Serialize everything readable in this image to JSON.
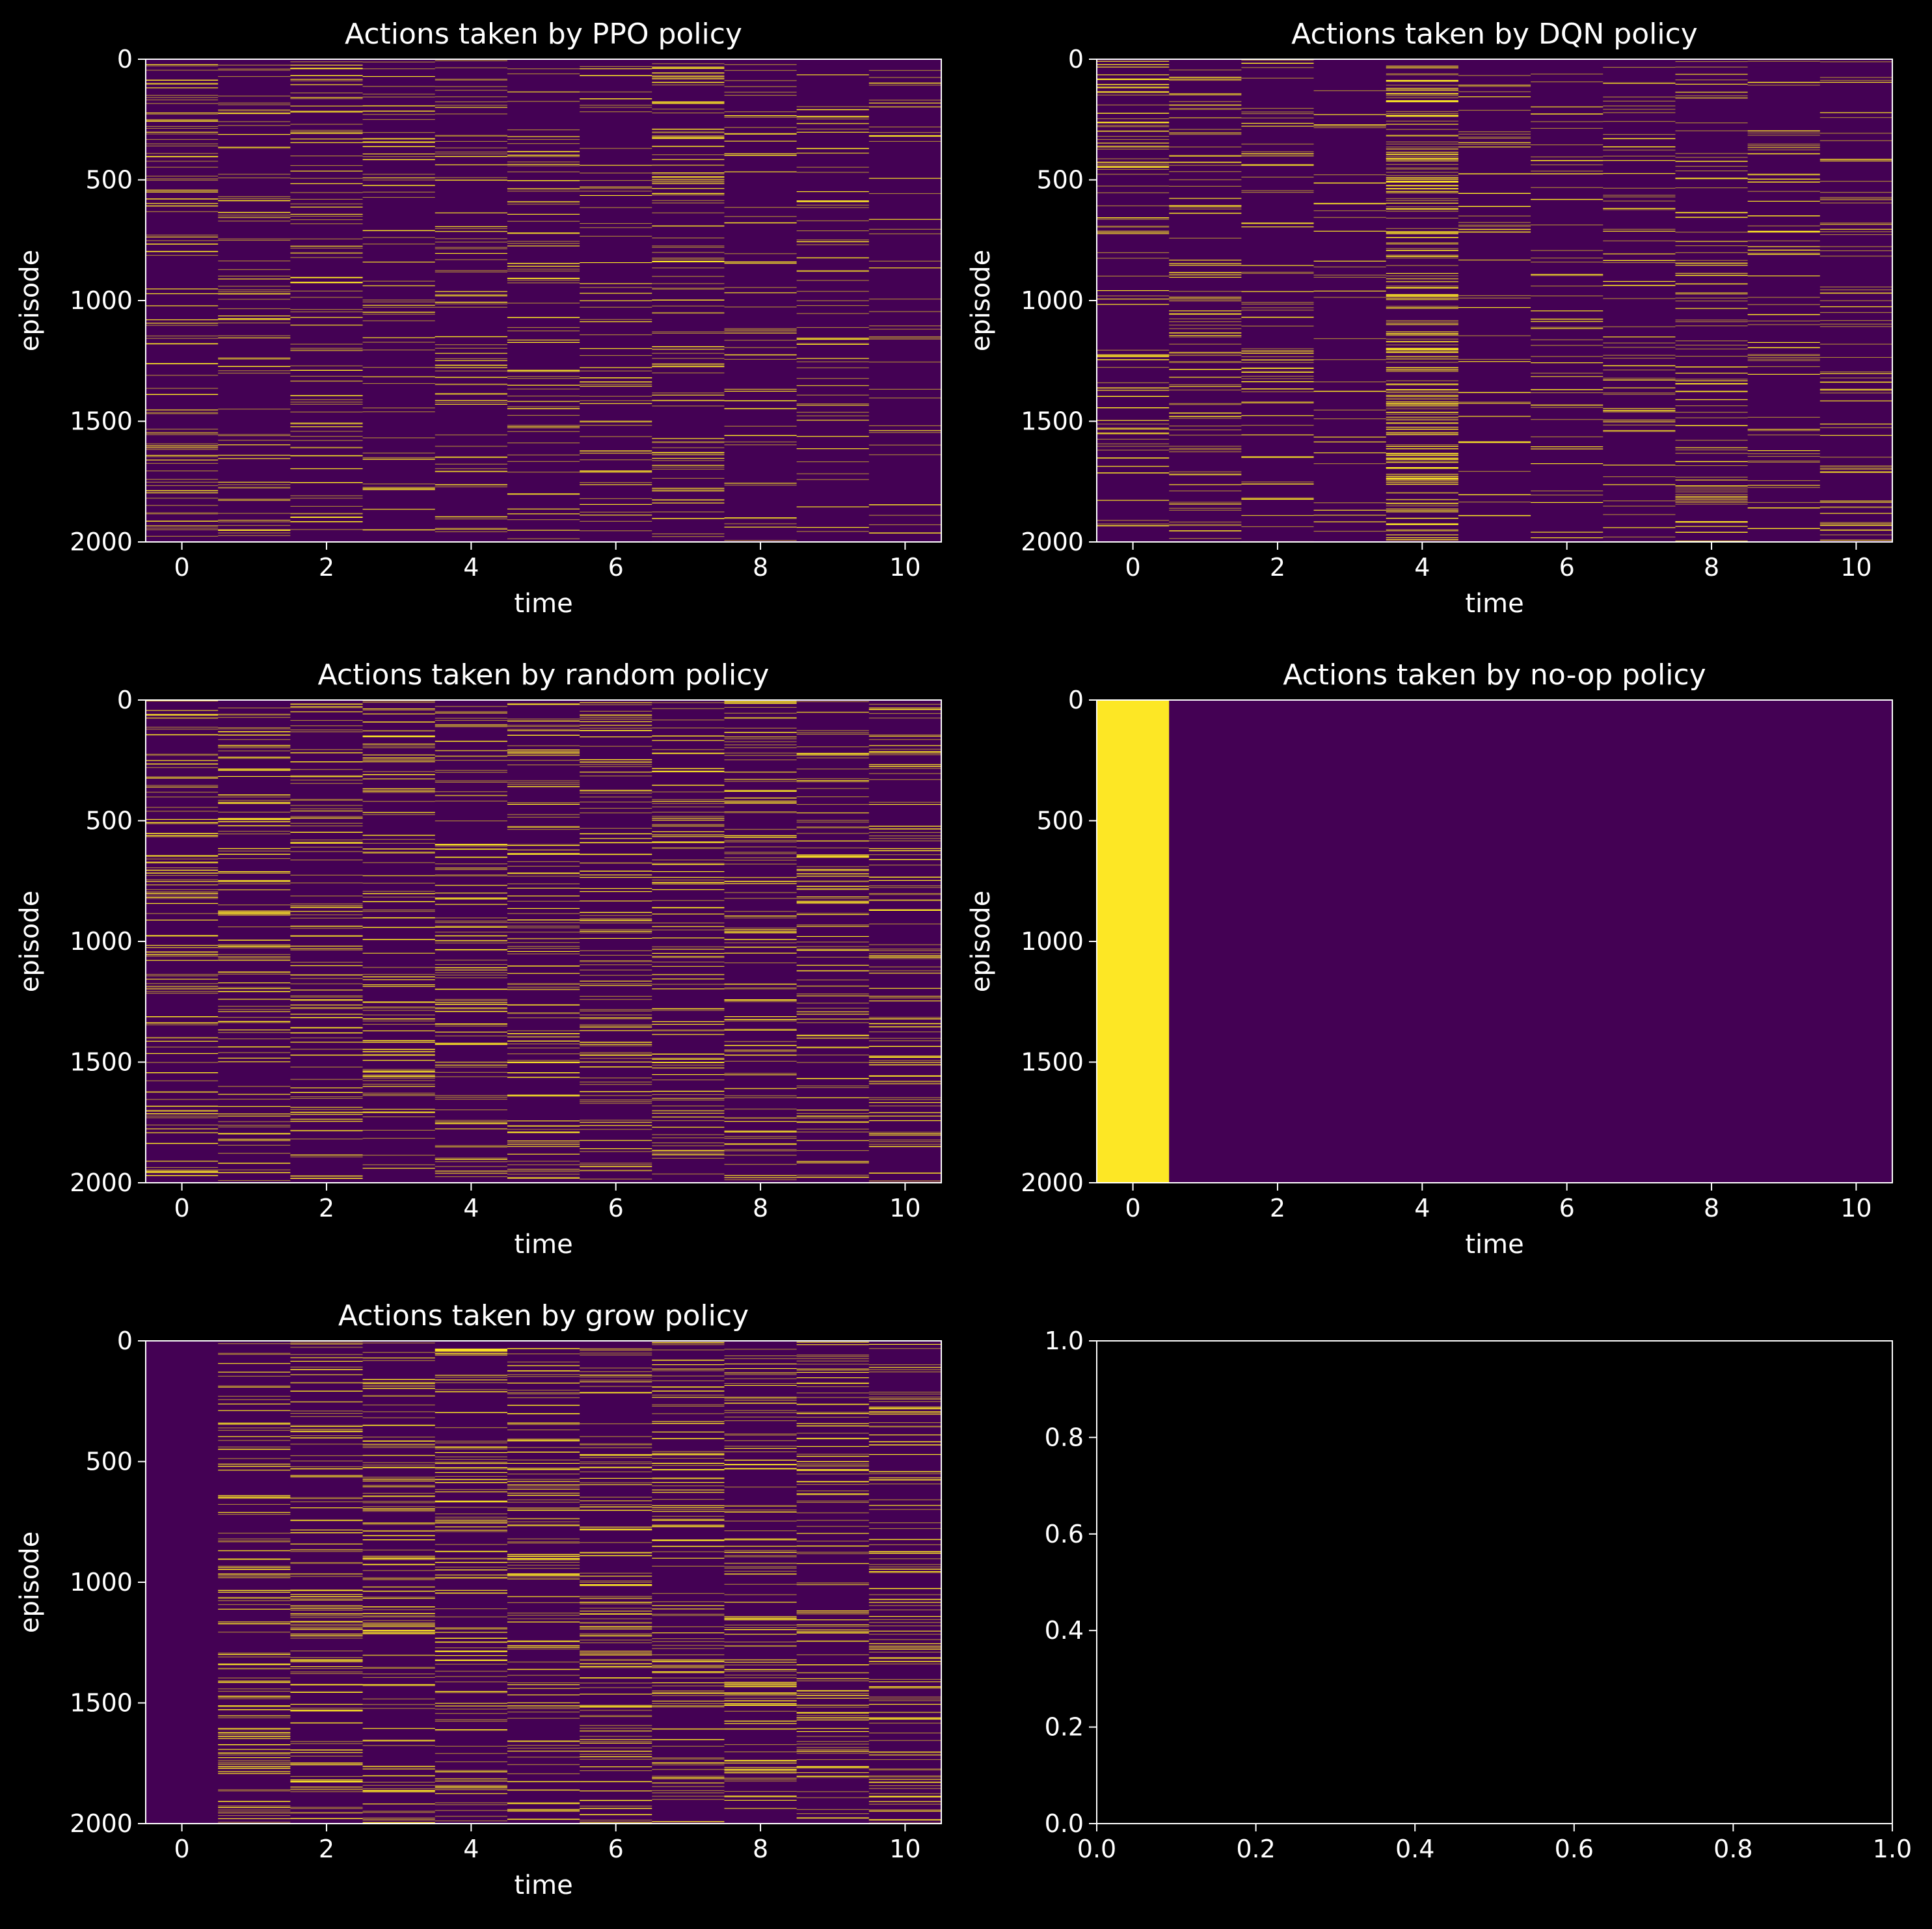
{
  "figure": {
    "background": "#000000",
    "foreground": "#ffffff"
  },
  "colors": {
    "action_off": "#440154",
    "action_on": "#fde725"
  },
  "chart_data": [
    {
      "type": "heatmap",
      "title": "Actions taken by PPO policy",
      "xlabel": "time",
      "ylabel": "episode",
      "xlim": [
        -0.5,
        10.5
      ],
      "ylim": [
        2000,
        0
      ],
      "xticks": [
        0,
        2,
        4,
        6,
        8,
        10
      ],
      "yticks": [
        0,
        500,
        1000,
        1500,
        2000
      ],
      "n_time": 11,
      "n_episodes": 2000,
      "values": "binary action per (episode, time): background 0, scattered episodes with 1 at each time step",
      "active_fraction_by_time": [
        0.22,
        0.18,
        0.22,
        0.14,
        0.18,
        0.18,
        0.14,
        0.24,
        0.12,
        0.14,
        0.09
      ]
    },
    {
      "type": "heatmap",
      "title": "Actions taken by DQN policy",
      "xlabel": "time",
      "ylabel": "episode",
      "xlim": [
        -0.5,
        10.5
      ],
      "ylim": [
        2000,
        0
      ],
      "xticks": [
        0,
        2,
        4,
        6,
        8,
        10
      ],
      "yticks": [
        0,
        500,
        1000,
        1500,
        2000
      ],
      "n_time": 11,
      "n_episodes": 2000,
      "active_fraction_by_time": [
        0.2,
        0.22,
        0.16,
        0.08,
        0.55,
        0.1,
        0.12,
        0.16,
        0.2,
        0.14,
        0.16
      ]
    },
    {
      "type": "heatmap",
      "title": "Actions taken by random policy",
      "xlabel": "time",
      "ylabel": "episode",
      "xlim": [
        -0.5,
        10.5
      ],
      "ylim": [
        2000,
        0
      ],
      "xticks": [
        0,
        2,
        4,
        6,
        8,
        10
      ],
      "yticks": [
        0,
        500,
        1000,
        1500,
        2000
      ],
      "n_time": 11,
      "n_episodes": 2000,
      "active_fraction_by_time": [
        0.25,
        0.25,
        0.25,
        0.25,
        0.25,
        0.25,
        0.25,
        0.25,
        0.25,
        0.25,
        0.25
      ]
    },
    {
      "type": "heatmap",
      "title": "Actions taken by no-op policy",
      "xlabel": "time",
      "ylabel": "episode",
      "xlim": [
        -0.5,
        10.5
      ],
      "ylim": [
        2000,
        0
      ],
      "xticks": [
        0,
        2,
        4,
        6,
        8,
        10
      ],
      "yticks": [
        0,
        500,
        1000,
        1500,
        2000
      ],
      "n_time": 11,
      "n_episodes": 2000,
      "active_fraction_by_time": [
        1,
        0,
        0,
        0,
        0,
        0,
        0,
        0,
        0,
        0,
        0
      ]
    },
    {
      "type": "heatmap",
      "title": "Actions taken by grow policy",
      "xlabel": "time",
      "ylabel": "episode",
      "xlim": [
        -0.5,
        10.5
      ],
      "ylim": [
        2000,
        0
      ],
      "xticks": [
        0,
        2,
        4,
        6,
        8,
        10
      ],
      "yticks": [
        0,
        500,
        1000,
        1500,
        2000
      ],
      "n_time": 11,
      "n_episodes": 2000,
      "active_fraction_by_time": [
        0,
        0.28,
        0.28,
        0.28,
        0.28,
        0.28,
        0.28,
        0.28,
        0.28,
        0.28,
        0.28
      ]
    },
    {
      "type": "empty",
      "title": "",
      "xlabel": "",
      "ylabel": "",
      "xlim": [
        0,
        1
      ],
      "ylim": [
        0,
        1
      ],
      "xticks": [
        0.0,
        0.2,
        0.4,
        0.6,
        0.8,
        1.0
      ],
      "yticks": [
        0.0,
        0.2,
        0.4,
        0.6,
        0.8,
        1.0
      ],
      "xtick_labels": [
        "0.0",
        "0.2",
        "0.4",
        "0.6",
        "0.8",
        "1.0"
      ],
      "ytick_labels": [
        "0.0",
        "0.2",
        "0.4",
        "0.6",
        "0.8",
        "1.0"
      ]
    }
  ]
}
